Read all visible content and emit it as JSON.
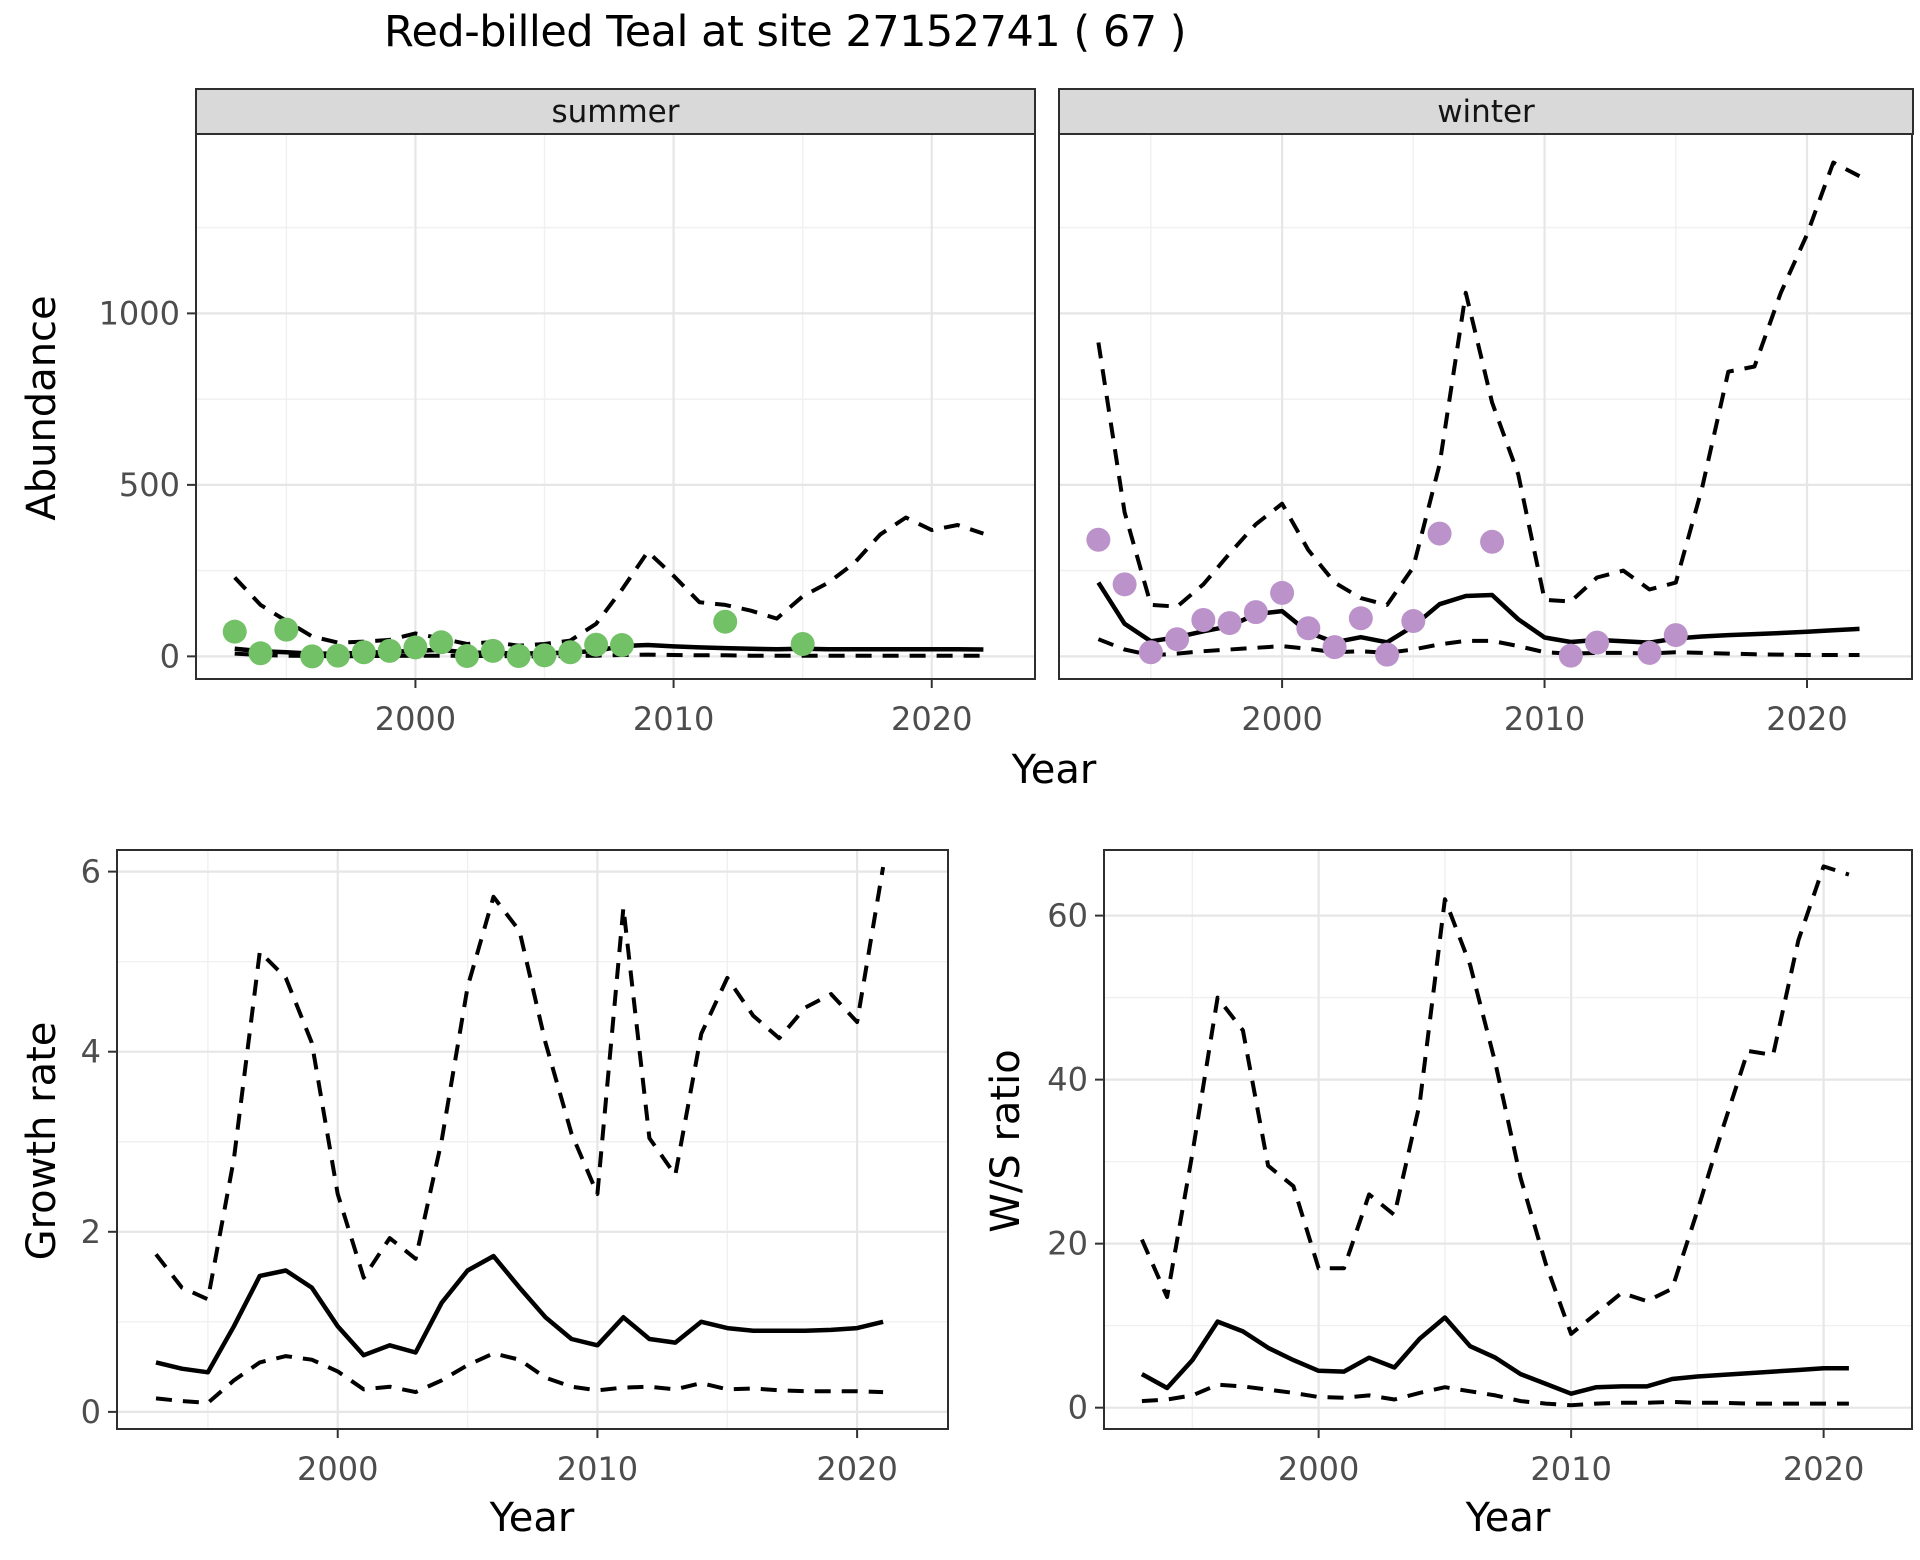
{
  "title": "Red-billed Teal at site 27152741 ( 67 )",
  "facets": {
    "summer": "summer",
    "winter": "winter"
  },
  "axes": {
    "abundance_label": "Abundance",
    "year_label": "Year",
    "growth_label": "Growth rate",
    "ws_label": "W/S ratio"
  },
  "colors": {
    "point_summer": "#73c167",
    "point_winter": "#bb92c9",
    "line": "#000000",
    "strip_bg": "#d9d9d9",
    "grid_major": "#e6e6e6",
    "grid_minor": "#f0f0f0",
    "panel_border": "#2e2e2e",
    "tick_text": "#4d4d4d"
  },
  "chart_data": [
    {
      "id": "abundance-summer",
      "type": "line",
      "title": "summer",
      "xlabel": "Year",
      "ylabel": "Abundance",
      "xlim": [
        1991.5,
        2024.0
      ],
      "ylim": [
        -66,
        1523
      ],
      "x_ticks": [
        2000,
        2010,
        2020
      ],
      "x_tick_labels": [
        "2000",
        "2010",
        "2020"
      ],
      "x_minor": [
        1995,
        2005,
        2015
      ],
      "y_ticks": [
        0,
        500,
        1000
      ],
      "y_tick_labels": [
        "0",
        "500",
        "1000"
      ],
      "y_minor": [
        250,
        750,
        1250
      ],
      "y_axis": true,
      "grid": true,
      "legend": "none",
      "series": [
        {
          "name": "upper_ci",
          "style": "dashed",
          "years": [
            1993,
            1994,
            1995,
            1996,
            1997,
            1998,
            1999,
            2000,
            2001,
            2002,
            2003,
            2004,
            2005,
            2006,
            2007,
            2008,
            2009,
            2010,
            2011,
            2012,
            2013,
            2014,
            2015,
            2016,
            2017,
            2018,
            2019,
            2020,
            2021,
            2022
          ],
          "values": [
            230,
            150,
            103,
            58,
            40,
            43,
            48,
            67,
            52,
            36,
            42,
            31,
            36,
            46,
            95,
            195,
            305,
            235,
            158,
            150,
            133,
            110,
            175,
            215,
            272,
            355,
            405,
            368,
            383,
            358
          ]
        },
        {
          "name": "fitted_trend",
          "style": "solid",
          "years": [
            1993,
            1994,
            1995,
            1996,
            1997,
            1998,
            1999,
            2000,
            2001,
            2002,
            2003,
            2004,
            2005,
            2006,
            2007,
            2008,
            2009,
            2010,
            2011,
            2012,
            2013,
            2014,
            2015,
            2016,
            2017,
            2018,
            2019,
            2020,
            2021,
            2022
          ],
          "values": [
            22,
            15,
            12,
            8,
            8,
            10,
            13,
            16,
            19,
            11,
            10,
            8,
            9,
            11,
            16,
            30,
            33,
            29,
            26,
            24,
            22,
            21,
            22,
            21,
            21,
            21,
            21,
            21,
            21,
            20
          ]
        },
        {
          "name": "lower_ci",
          "style": "dashed",
          "years": [
            1993,
            1994,
            1995,
            1996,
            1997,
            1998,
            1999,
            2000,
            2001,
            2002,
            2003,
            2004,
            2005,
            2006,
            2007,
            2008,
            2009,
            2010,
            2011,
            2012,
            2013,
            2014,
            2015,
            2016,
            2017,
            2018,
            2019,
            2020,
            2021,
            2022
          ],
          "values": [
            8,
            4,
            2,
            1,
            0,
            1,
            1,
            2,
            2,
            1,
            1,
            0,
            0,
            1,
            2,
            4,
            5,
            4,
            3,
            3,
            2,
            2,
            2,
            2,
            2,
            2,
            2,
            2,
            2,
            2
          ]
        },
        {
          "name": "summer_counts",
          "style": "points",
          "color_key": "point_summer",
          "years": [
            1993,
            1994,
            1995,
            1996,
            1997,
            1998,
            1999,
            2000,
            2001,
            2002,
            2003,
            2004,
            2005,
            2006,
            2007,
            2008,
            2012,
            2015
          ],
          "values": [
            72,
            9,
            78,
            0,
            2,
            12,
            16,
            26,
            41,
            1,
            16,
            1,
            3,
            12,
            34,
            33,
            101,
            36
          ]
        }
      ]
    },
    {
      "id": "abundance-winter",
      "type": "line",
      "title": "winter",
      "xlabel": "Year",
      "ylabel": "Abundance",
      "xlim": [
        1991.5,
        2024.0
      ],
      "ylim": [
        -66,
        1523
      ],
      "x_ticks": [
        2000,
        2010,
        2020
      ],
      "x_tick_labels": [
        "2000",
        "2010",
        "2020"
      ],
      "x_minor": [
        1995,
        2005,
        2015
      ],
      "y_ticks": [
        0,
        500,
        1000
      ],
      "y_tick_labels": [
        "0",
        "500",
        "1000"
      ],
      "y_minor": [
        250,
        750,
        1250
      ],
      "y_axis": false,
      "grid": true,
      "legend": "none",
      "series": [
        {
          "name": "upper_ci",
          "style": "dashed",
          "years": [
            1993,
            1994,
            1995,
            1996,
            1997,
            1998,
            1999,
            2000,
            2001,
            2002,
            2003,
            2004,
            2005,
            2006,
            2007,
            2008,
            2009,
            2010,
            2011,
            2012,
            2013,
            2014,
            2015,
            2016,
            2017,
            2018,
            2019,
            2020,
            2021,
            2022
          ],
          "values": [
            915,
            420,
            150,
            145,
            210,
            300,
            385,
            445,
            310,
            215,
            170,
            150,
            260,
            560,
            1060,
            740,
            530,
            165,
            160,
            230,
            250,
            195,
            215,
            490,
            830,
            845,
            1060,
            1230,
            1440,
            1400
          ]
        },
        {
          "name": "fitted_trend",
          "style": "solid",
          "years": [
            1993,
            1994,
            1995,
            1996,
            1997,
            1998,
            1999,
            2000,
            2001,
            2002,
            2003,
            2004,
            2005,
            2006,
            2007,
            2008,
            2009,
            2010,
            2011,
            2012,
            2013,
            2014,
            2015,
            2016,
            2017,
            2018,
            2019,
            2020,
            2021,
            2022
          ],
          "values": [
            215,
            95,
            44,
            56,
            73,
            88,
            123,
            132,
            70,
            41,
            56,
            41,
            88,
            152,
            176,
            179,
            108,
            55,
            42,
            48,
            44,
            40,
            52,
            58,
            62,
            65,
            68,
            72,
            76,
            80
          ]
        },
        {
          "name": "lower_ci",
          "style": "dashed",
          "years": [
            1993,
            1994,
            1995,
            1996,
            1997,
            1998,
            1999,
            2000,
            2001,
            2002,
            2003,
            2004,
            2005,
            2006,
            2007,
            2008,
            2009,
            2010,
            2011,
            2012,
            2013,
            2014,
            2015,
            2016,
            2017,
            2018,
            2019,
            2020,
            2021,
            2022
          ],
          "values": [
            50,
            20,
            3,
            8,
            15,
            20,
            25,
            30,
            22,
            12,
            15,
            10,
            20,
            35,
            45,
            45,
            30,
            12,
            8,
            10,
            10,
            8,
            12,
            10,
            8,
            6,
            5,
            4,
            4,
            4
          ]
        },
        {
          "name": "winter_counts",
          "style": "points",
          "color_key": "point_winter",
          "years": [
            1993,
            1994,
            1995,
            1996,
            1997,
            1998,
            1999,
            2000,
            2001,
            2002,
            2003,
            2004,
            2005,
            2006,
            2008,
            2011,
            2012,
            2014,
            2015
          ],
          "values": [
            340,
            210,
            12,
            50,
            106,
            97,
            129,
            185,
            82,
            27,
            111,
            5,
            103,
            358,
            334,
            2,
            40,
            10,
            62
          ]
        }
      ]
    },
    {
      "id": "growth-rate",
      "type": "line",
      "title": "",
      "xlabel": "Year",
      "ylabel": "Growth rate",
      "xlim": [
        1991.5,
        2023.5
      ],
      "ylim": [
        -0.19,
        6.24
      ],
      "x_ticks": [
        2000,
        2010,
        2020
      ],
      "x_tick_labels": [
        "2000",
        "2010",
        "2020"
      ],
      "x_minor": [
        1995,
        2005,
        2015
      ],
      "y_ticks": [
        0,
        2,
        4,
        6
      ],
      "y_tick_labels": [
        "0",
        "2",
        "4",
        "6"
      ],
      "y_minor": [
        1,
        3,
        5
      ],
      "y_axis": true,
      "grid": true,
      "legend": "none",
      "series": [
        {
          "name": "upper_ci",
          "style": "dashed",
          "years": [
            1993,
            1994,
            1995,
            1996,
            1997,
            1998,
            1999,
            2000,
            2001,
            2002,
            2003,
            2004,
            2005,
            2006,
            2007,
            2008,
            2009,
            2010,
            2011,
            2012,
            2013,
            2014,
            2015,
            2016,
            2017,
            2018,
            2019,
            2020,
            2021
          ],
          "values": [
            1.75,
            1.38,
            1.25,
            2.81,
            5.11,
            4.82,
            4.1,
            2.42,
            1.49,
            1.93,
            1.7,
            3.01,
            4.72,
            5.72,
            5.34,
            4.1,
            3.09,
            2.42,
            5.6,
            3.04,
            2.63,
            4.2,
            4.82,
            4.4,
            4.15,
            4.49,
            4.64,
            4.33,
            6.05
          ]
        },
        {
          "name": "fitted_trend",
          "style": "solid",
          "years": [
            1993,
            1994,
            1995,
            1996,
            1997,
            1998,
            1999,
            2000,
            2001,
            2002,
            2003,
            2004,
            2005,
            2006,
            2007,
            2008,
            2009,
            2010,
            2011,
            2012,
            2013,
            2014,
            2015,
            2016,
            2017,
            2018,
            2019,
            2020,
            2021
          ],
          "values": [
            0.55,
            0.48,
            0.44,
            0.95,
            1.51,
            1.57,
            1.38,
            0.95,
            0.63,
            0.74,
            0.66,
            1.21,
            1.57,
            1.73,
            1.38,
            1.05,
            0.81,
            0.74,
            1.05,
            0.81,
            0.77,
            1.0,
            0.93,
            0.9,
            0.9,
            0.9,
            0.91,
            0.93,
            1.0
          ]
        },
        {
          "name": "lower_ci",
          "style": "dashed",
          "years": [
            1993,
            1994,
            1995,
            1996,
            1997,
            1998,
            1999,
            2000,
            2001,
            2002,
            2003,
            2004,
            2005,
            2006,
            2007,
            2008,
            2009,
            2010,
            2011,
            2012,
            2013,
            2014,
            2015,
            2016,
            2017,
            2018,
            2019,
            2020,
            2021
          ],
          "values": [
            0.15,
            0.12,
            0.1,
            0.35,
            0.55,
            0.62,
            0.58,
            0.45,
            0.25,
            0.28,
            0.22,
            0.35,
            0.52,
            0.65,
            0.58,
            0.38,
            0.28,
            0.24,
            0.27,
            0.28,
            0.25,
            0.32,
            0.25,
            0.26,
            0.24,
            0.23,
            0.23,
            0.23,
            0.22
          ]
        }
      ]
    },
    {
      "id": "ws-ratio",
      "type": "line",
      "title": "",
      "xlabel": "Year",
      "ylabel": "W/S ratio",
      "xlim": [
        1991.5,
        2023.5
      ],
      "ylim": [
        -2.6,
        68.0
      ],
      "x_ticks": [
        2000,
        2010,
        2020
      ],
      "x_tick_labels": [
        "2000",
        "2010",
        "2020"
      ],
      "x_minor": [
        1995,
        2005,
        2015
      ],
      "y_ticks": [
        0,
        20,
        40,
        60
      ],
      "y_tick_labels": [
        "0",
        "20",
        "40",
        "60"
      ],
      "y_minor": [
        10,
        30,
        50
      ],
      "y_axis": true,
      "grid": true,
      "legend": "none",
      "series": [
        {
          "name": "upper_ci",
          "style": "dashed",
          "years": [
            1993,
            1994,
            1995,
            1996,
            1997,
            1998,
            1999,
            2000,
            2001,
            2002,
            2003,
            2004,
            2005,
            2006,
            2007,
            2008,
            2009,
            2010,
            2011,
            2012,
            2013,
            2014,
            2015,
            2016,
            2017,
            2018,
            2019,
            2020,
            2021
          ],
          "values": [
            20.5,
            13.5,
            31,
            50,
            46,
            29.5,
            27,
            17,
            17,
            26,
            23.5,
            37,
            62,
            54,
            42,
            28,
            17.5,
            9,
            11.5,
            14,
            13,
            14.5,
            24,
            34,
            43.5,
            43,
            57,
            66,
            65
          ]
        },
        {
          "name": "fitted_trend",
          "style": "solid",
          "years": [
            1993,
            1994,
            1995,
            1996,
            1997,
            1998,
            1999,
            2000,
            2001,
            2002,
            2003,
            2004,
            2005,
            2006,
            2007,
            2008,
            2009,
            2010,
            2011,
            2012,
            2013,
            2014,
            2015,
            2016,
            2017,
            2018,
            2019,
            2020,
            2021
          ],
          "values": [
            4.1,
            2.4,
            5.8,
            10.5,
            9.3,
            7.3,
            5.8,
            4.5,
            4.4,
            6.1,
            4.9,
            8.4,
            11.0,
            7.5,
            6.1,
            4.1,
            2.9,
            1.7,
            2.5,
            2.6,
            2.6,
            3.5,
            3.8,
            4.0,
            4.2,
            4.4,
            4.6,
            4.8,
            4.8
          ]
        },
        {
          "name": "lower_ci",
          "style": "dashed",
          "years": [
            1993,
            1994,
            1995,
            1996,
            1997,
            1998,
            1999,
            2000,
            2001,
            2002,
            2003,
            2004,
            2005,
            2006,
            2007,
            2008,
            2009,
            2010,
            2011,
            2012,
            2013,
            2014,
            2015,
            2016,
            2017,
            2018,
            2019,
            2020,
            2021
          ],
          "values": [
            0.8,
            1.0,
            1.5,
            2.8,
            2.6,
            2.2,
            1.8,
            1.3,
            1.2,
            1.5,
            1.0,
            1.8,
            2.5,
            2.0,
            1.5,
            0.8,
            0.5,
            0.3,
            0.5,
            0.6,
            0.6,
            0.7,
            0.6,
            0.6,
            0.5,
            0.5,
            0.5,
            0.5,
            0.5
          ]
        }
      ]
    }
  ]
}
